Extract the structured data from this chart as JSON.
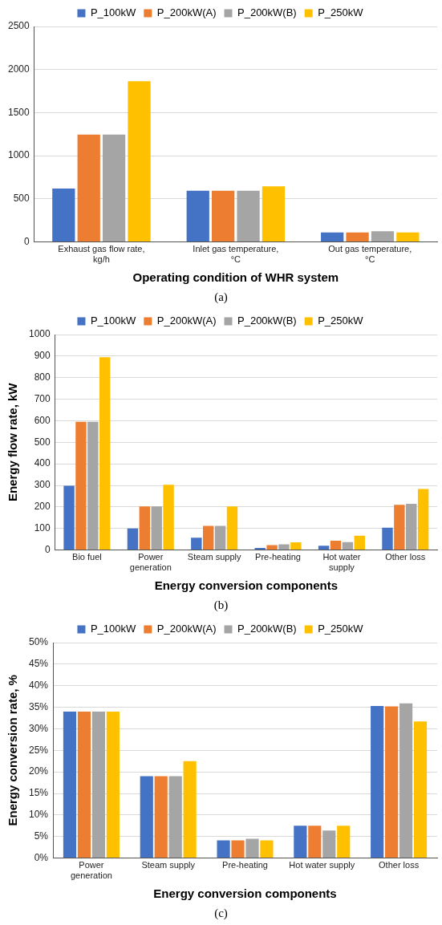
{
  "chart_data": [
    {
      "type": "bar",
      "xlabel": "Operating condition of WHR system",
      "annotations": [
        "(a)"
      ],
      "categories": [
        "Exhaust gas flow rate,\nkg/h",
        "Inlet gas temperature,\n°C",
        "Out gas temperature,\n°C"
      ],
      "series": [
        {
          "name": "P_100kW",
          "color": "#4472c4",
          "values": [
            620,
            595,
            110
          ]
        },
        {
          "name": "P_200kW(A)",
          "color": "#ed7d31",
          "values": [
            1245,
            595,
            110
          ]
        },
        {
          "name": "P_200kW(B)",
          "color": "#a5a5a5",
          "values": [
            1245,
            595,
            125
          ]
        },
        {
          "name": "P_250kW",
          "color": "#ffc000",
          "values": [
            1865,
            645,
            110
          ]
        }
      ],
      "ylim": [
        0,
        2500
      ],
      "yticks": [
        0,
        500,
        1000,
        1500,
        2000,
        2500
      ],
      "grid": "y",
      "legend": "top"
    },
    {
      "type": "bar",
      "xlabel": "Energy conversion components",
      "ylabel": "Energy flow rate, kW",
      "annotations": [
        "(b)"
      ],
      "categories": [
        "Bio fuel",
        "Power\ngeneration",
        "Steam supply",
        "Pre-heating",
        "Hot water\nsupply",
        "Other loss"
      ],
      "series": [
        {
          "name": "P_100kW",
          "color": "#4472c4",
          "values": [
            298,
            100,
            57,
            10,
            20,
            104
          ]
        },
        {
          "name": "P_200kW(A)",
          "color": "#ed7d31",
          "values": [
            595,
            202,
            112,
            23,
            43,
            210
          ]
        },
        {
          "name": "P_200kW(B)",
          "color": "#a5a5a5",
          "values": [
            595,
            202,
            112,
            26,
            37,
            214
          ]
        },
        {
          "name": "P_250kW",
          "color": "#ffc000",
          "values": [
            895,
            303,
            202,
            36,
            66,
            283
          ]
        }
      ],
      "ylim": [
        0,
        1000
      ],
      "yticks": [
        0,
        100,
        200,
        300,
        400,
        500,
        600,
        700,
        800,
        900,
        1000
      ],
      "grid": "y",
      "legend": "top"
    },
    {
      "type": "bar",
      "xlabel": "Energy conversion components",
      "ylabel": "Energy conversion rate, %",
      "annotations": [
        "(c)"
      ],
      "categories": [
        "Power\ngeneration",
        "Steam supply",
        "Pre-heating",
        "Hot water supply",
        "Other loss"
      ],
      "series": [
        {
          "name": "P_100kW",
          "color": "#4472c4",
          "values": [
            34,
            19,
            4.1,
            7.5,
            35.3
          ]
        },
        {
          "name": "P_200kW(A)",
          "color": "#ed7d31",
          "values": [
            34,
            19,
            4.1,
            7.5,
            35.2
          ]
        },
        {
          "name": "P_200kW(B)",
          "color": "#a5a5a5",
          "values": [
            34,
            19,
            4.5,
            6.4,
            35.9
          ]
        },
        {
          "name": "P_250kW",
          "color": "#ffc000",
          "values": [
            34,
            22.5,
            4.1,
            7.5,
            31.7
          ]
        }
      ],
      "ylim": [
        0,
        50
      ],
      "yticks": [
        {
          "value": 0,
          "label": "0%"
        },
        {
          "value": 5,
          "label": "5%"
        },
        {
          "value": 10,
          "label": "10%"
        },
        {
          "value": 15,
          "label": "15%"
        },
        {
          "value": 20,
          "label": "20%"
        },
        {
          "value": 25,
          "label": "25%"
        },
        {
          "value": 30,
          "label": "30%"
        },
        {
          "value": 35,
          "label": "35%"
        },
        {
          "value": 40,
          "label": "40%"
        },
        {
          "value": 45,
          "label": "45%"
        },
        {
          "value": 50,
          "label": "50%"
        }
      ],
      "grid": "y",
      "legend": "top"
    }
  ]
}
